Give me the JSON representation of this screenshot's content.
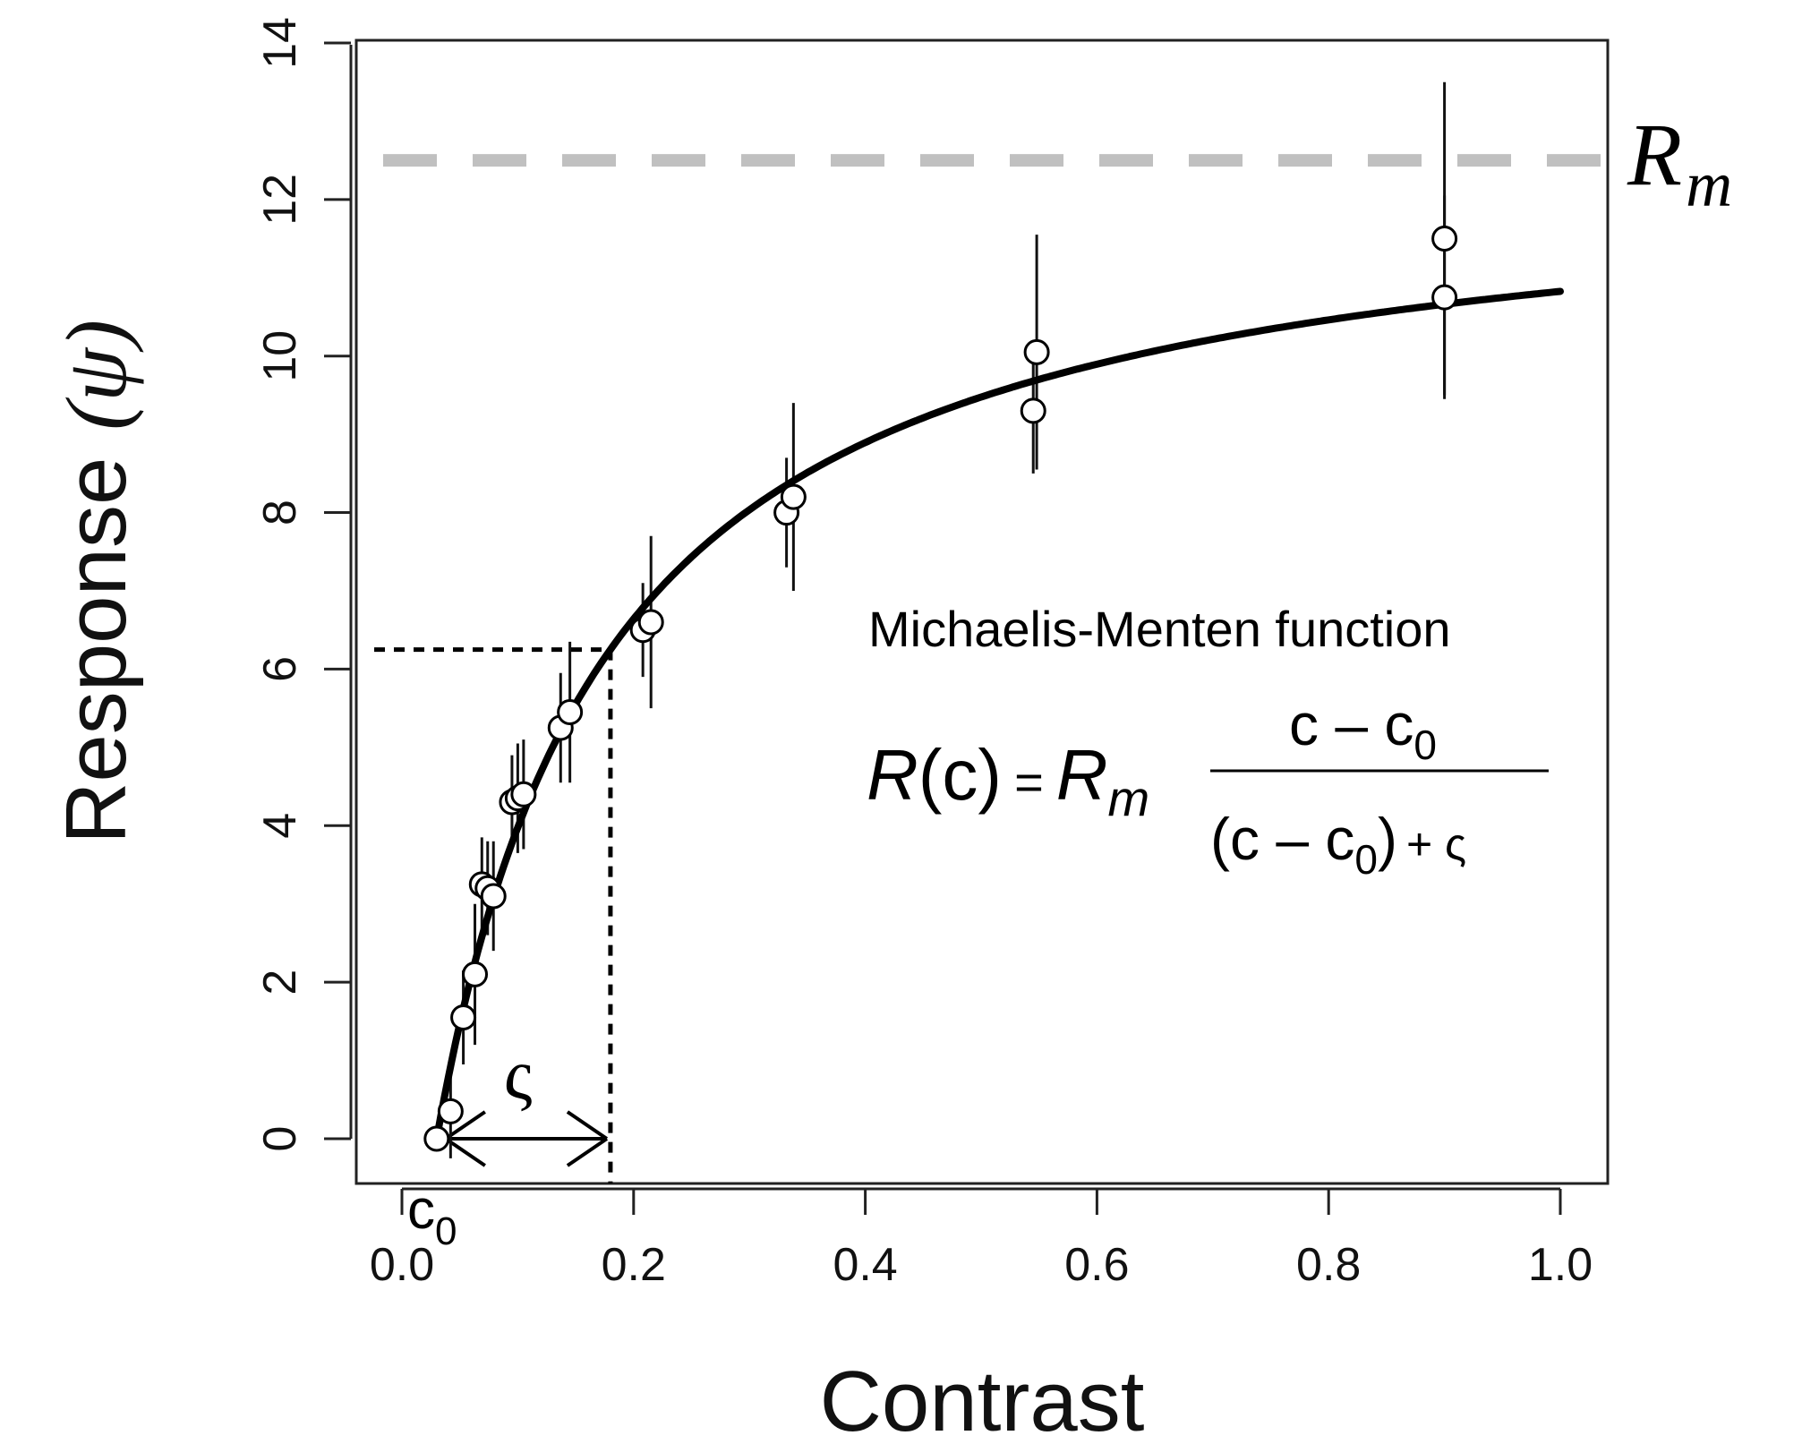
{
  "chart_data": {
    "type": "scatter",
    "xlabel": "Contrast",
    "ylabel": "Response",
    "ylabel_symbol": "(ψ)",
    "xlim": [
      -0.05,
      1.02
    ],
    "ylim": [
      -0.5,
      14
    ],
    "x_ticks": [
      0.0,
      0.2,
      0.4,
      0.6,
      0.8,
      1.0
    ],
    "x_tick_labels": [
      "0.0",
      "0.2",
      "0.4",
      "0.6",
      "0.8",
      "1.0"
    ],
    "y_ticks": [
      0,
      2,
      4,
      6,
      8,
      10,
      12,
      14
    ],
    "y_tick_labels": [
      "0",
      "2",
      "4",
      "6",
      "8",
      "10",
      "12",
      "14"
    ],
    "grid": false,
    "series": [
      {
        "kind": "points_with_error_bars",
        "points": [
          {
            "x": 0.03,
            "y": 0.0,
            "err": 0.1
          },
          {
            "x": 0.042,
            "y": 0.35,
            "err": 0.6
          },
          {
            "x": 0.053,
            "y": 1.55,
            "err": 0.6
          },
          {
            "x": 0.063,
            "y": 2.1,
            "err": 0.9
          },
          {
            "x": 0.069,
            "y": 3.25,
            "err": 0.6
          },
          {
            "x": 0.074,
            "y": 3.2,
            "err": 0.6
          },
          {
            "x": 0.079,
            "y": 3.1,
            "err": 0.7
          },
          {
            "x": 0.095,
            "y": 4.3,
            "err": 0.6
          },
          {
            "x": 0.1,
            "y": 4.35,
            "err": 0.7
          },
          {
            "x": 0.105,
            "y": 4.4,
            "err": 0.7
          },
          {
            "x": 0.137,
            "y": 5.25,
            "err": 0.7
          },
          {
            "x": 0.145,
            "y": 5.45,
            "err": 0.9
          },
          {
            "x": 0.208,
            "y": 6.5,
            "err": 0.6
          },
          {
            "x": 0.215,
            "y": 6.6,
            "err": 1.1
          },
          {
            "x": 0.332,
            "y": 8.0,
            "err": 0.7
          },
          {
            "x": 0.338,
            "y": 8.2,
            "err": 1.2
          },
          {
            "x": 0.545,
            "y": 9.3,
            "err": 0.8
          },
          {
            "x": 0.548,
            "y": 10.05,
            "err": 1.5
          },
          {
            "x": 0.9,
            "y": 10.75,
            "err": 1.3
          },
          {
            "x": 0.9,
            "y": 11.5,
            "err": 2.0
          }
        ]
      },
      {
        "kind": "fitted_curve",
        "function": "Michaelis-Menten",
        "params": {
          "Rm": 12.5,
          "c0": 0.03,
          "semisaturation": 0.15
        },
        "x_end": 1.0
      }
    ],
    "rm_line": {
      "y": 12.5,
      "color": "#c0c0c0",
      "style": "dashed",
      "label": "R",
      "label_sub": "m"
    },
    "semisaturation_marker": {
      "x": 0.18,
      "y": 6.25,
      "arrow_from_x": 0.03,
      "arrow_to_x": 0.18,
      "arrow_y": 0.0,
      "label": "ς"
    },
    "c0_marker": {
      "x": 0.0,
      "label": "c",
      "label_sub": "0"
    },
    "annotation": {
      "title": "Michaelis-Menten function",
      "eq_lhs_R": "R",
      "eq_lhs_arg": "(c)",
      "eq_equals": "=",
      "eq_Rm": "R",
      "eq_Rm_sub": "m",
      "eq_num_c": "c – c",
      "eq_num_sub": "0",
      "eq_den_open": "(c – c",
      "eq_den_sub": "0",
      "eq_den_close": ")",
      "eq_den_plus": "+ ς"
    },
    "colors": {
      "curve": "#000000",
      "points_fill": "#ffffff",
      "points_stroke": "#000000",
      "rm_line": "#c0c0c0"
    }
  }
}
